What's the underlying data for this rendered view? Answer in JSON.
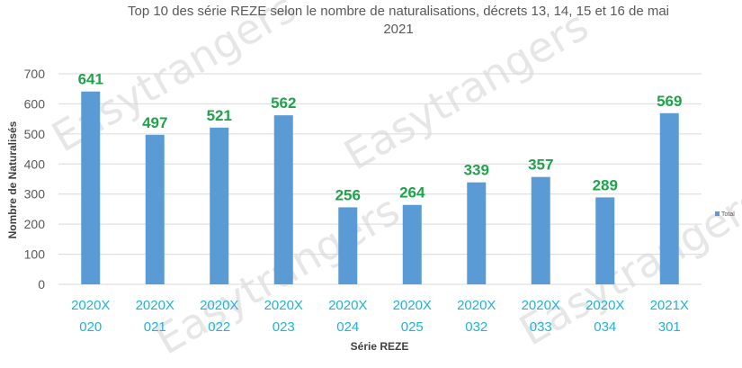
{
  "chart_data": {
    "type": "bar",
    "title_lines": [
      "Top 10 des série REZE selon le nombre de naturalisations, décrets 13, 14, 15 et 16 de mai",
      "2021"
    ],
    "categories": [
      [
        "2020X",
        "020"
      ],
      [
        "2020X",
        "021"
      ],
      [
        "2020X",
        "022"
      ],
      [
        "2020X",
        "023"
      ],
      [
        "2020X",
        "024"
      ],
      [
        "2020X",
        "025"
      ],
      [
        "2020X",
        "032"
      ],
      [
        "2020X",
        "033"
      ],
      [
        "2020X",
        "034"
      ],
      [
        "2021X",
        "301"
      ]
    ],
    "series": [
      {
        "name": "Total",
        "values": [
          641,
          497,
          521,
          562,
          256,
          264,
          339,
          357,
          289,
          569
        ]
      }
    ],
    "xlabel": "Série REZE",
    "ylabel": "Nombre de Naturalisés",
    "ylim": [
      0,
      700
    ],
    "yticks": [
      0,
      100,
      200,
      300,
      400,
      500,
      600,
      700
    ],
    "grid": true,
    "legend_position": "right",
    "colors": {
      "bar": "#5b9bd5",
      "data_label": "#1fa34a",
      "tick_label": "#1fb3d6",
      "grid": "#d9d9d9"
    }
  },
  "watermark": "Easytrangers"
}
